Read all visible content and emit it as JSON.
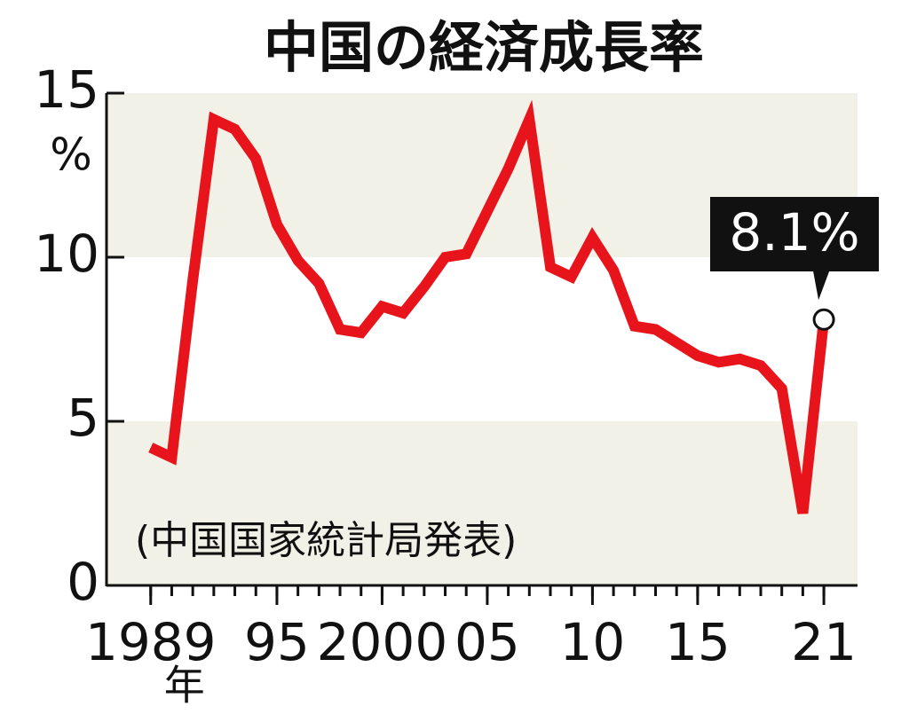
{
  "chart_data": {
    "type": "line",
    "title": "中国の経済成長率",
    "source": "(中国国家統計局発表)",
    "y_unit": "%",
    "x_unit": "年",
    "x": [
      1989,
      1990,
      1991,
      1992,
      1993,
      1994,
      1995,
      1996,
      1997,
      1998,
      1999,
      2000,
      2001,
      2002,
      2003,
      2004,
      2005,
      2006,
      2007,
      2008,
      2009,
      2010,
      2011,
      2012,
      2013,
      2014,
      2015,
      2016,
      2017,
      2018,
      2019,
      2020,
      2021
    ],
    "values": [
      4.2,
      3.9,
      9.3,
      14.2,
      13.9,
      13.0,
      11.0,
      9.9,
      9.2,
      7.8,
      7.7,
      8.5,
      8.3,
      9.1,
      10.0,
      10.1,
      11.4,
      12.7,
      14.2,
      9.7,
      9.4,
      10.6,
      9.6,
      7.9,
      7.8,
      7.4,
      7.0,
      6.8,
      6.9,
      6.7,
      6.0,
      2.2,
      8.1
    ],
    "value_labels": [
      null,
      null,
      null,
      null,
      null,
      null,
      null,
      null,
      null,
      null,
      null,
      null,
      null,
      null,
      null,
      null,
      null,
      null,
      null,
      null,
      null,
      null,
      null,
      null,
      null,
      null,
      null,
      null,
      null,
      null,
      null,
      null,
      "8.1%"
    ],
    "color": "#e8141c",
    "band_color": "#f1f1e8",
    "xlim": [
      1986.9,
      2022.6
    ],
    "ylim": [
      0,
      15
    ],
    "xticks": [
      1989,
      {
        "value": 1995,
        "label": "95"
      },
      2000,
      {
        "value": 2005,
        "label": "05"
      },
      {
        "value": 2010,
        "label": "10"
      },
      {
        "value": 2015,
        "label": "15"
      },
      {
        "value": 2021,
        "label": "21"
      }
    ],
    "yticks": [
      0,
      5,
      10,
      15
    ]
  }
}
